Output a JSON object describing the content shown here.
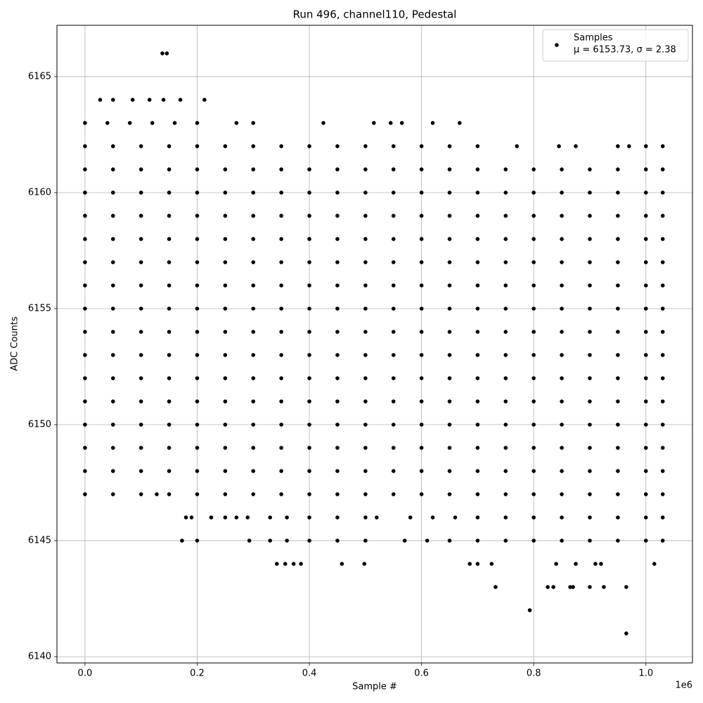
{
  "chart_data": {
    "type": "scatter",
    "title": "Run 496, channel110, Pedestal",
    "x_label": "Sample #",
    "y_label": "ADC Counts",
    "x_offset_label": "1e6",
    "xlim": [
      -0.05,
      1.083
    ],
    "ylim": [
      6139.73,
      6167.21
    ],
    "xticks": [
      {
        "value": 0,
        "label": "0.0"
      },
      {
        "value": 0.2,
        "label": "0.2"
      },
      {
        "value": 0.4,
        "label": "0.4"
      },
      {
        "value": 0.6,
        "label": "0.6"
      },
      {
        "value": 0.8,
        "label": "0.8"
      },
      {
        "value": 1.0,
        "label": "1.0"
      }
    ],
    "yticks": [
      6140,
      6145,
      6150,
      6155,
      6160,
      6165
    ],
    "grid": true,
    "legend": "upper right",
    "series": [
      {
        "name": "Samples",
        "legend_note": "μ = 6153.73, σ = 2.38",
        "color": "#000000",
        "x": [
          0,
          0.05,
          0.1,
          0.15,
          0.2,
          0.25,
          0.3,
          0.35,
          0.4,
          0.45,
          0.5,
          0.55,
          0.6,
          0.65,
          0.7,
          0.75,
          0.8,
          0.85,
          0.9,
          0.95,
          1.0,
          1.03,
          0,
          0.05,
          0.1,
          0.15,
          0.2,
          0.25,
          0.3,
          0.35,
          0.4,
          0.45,
          0.5,
          0.55,
          0.6,
          0.65,
          0.7,
          0.75,
          0.8,
          0.85,
          0.9,
          0.95,
          1.0,
          1.03,
          0,
          0.05,
          0.1,
          0.15,
          0.2,
          0.25,
          0.3,
          0.35,
          0.4,
          0.45,
          0.5,
          0.55,
          0.6,
          0.65,
          0.7,
          0.75,
          0.8,
          0.85,
          0.9,
          0.95,
          1.0,
          1.03,
          0,
          0.05,
          0.1,
          0.15,
          0.2,
          0.25,
          0.3,
          0.35,
          0.4,
          0.45,
          0.5,
          0.55,
          0.6,
          0.65,
          0.7,
          0.75,
          0.8,
          0.85,
          0.9,
          0.95,
          1.0,
          1.03,
          0,
          0.05,
          0.1,
          0.15,
          0.2,
          0.25,
          0.3,
          0.35,
          0.4,
          0.45,
          0.5,
          0.55,
          0.6,
          0.65,
          0.7,
          0.75,
          0.8,
          0.85,
          0.9,
          0.95,
          1.0,
          1.03,
          0,
          0.05,
          0.1,
          0.15,
          0.2,
          0.25,
          0.3,
          0.35,
          0.4,
          0.45,
          0.5,
          0.55,
          0.6,
          0.65,
          0.7,
          0.75,
          0.8,
          0.85,
          0.9,
          0.95,
          1.0,
          1.03,
          0,
          0.05,
          0.1,
          0.15,
          0.2,
          0.25,
          0.3,
          0.35,
          0.4,
          0.45,
          0.5,
          0.55,
          0.6,
          0.65,
          0.7,
          0.75,
          0.8,
          0.85,
          0.9,
          0.95,
          1.0,
          1.03,
          0,
          0.05,
          0.1,
          0.15,
          0.2,
          0.25,
          0.3,
          0.35,
          0.4,
          0.45,
          0.5,
          0.55,
          0.6,
          0.65,
          0.7,
          0.75,
          0.8,
          0.85,
          0.9,
          0.95,
          1.0,
          1.03,
          0,
          0.05,
          0.1,
          0.15,
          0.2,
          0.25,
          0.3,
          0.35,
          0.4,
          0.45,
          0.5,
          0.55,
          0.6,
          0.65,
          0.7,
          0.75,
          0.8,
          0.85,
          0.9,
          0.95,
          1.0,
          1.03,
          0,
          0.05,
          0.1,
          0.15,
          0.2,
          0.25,
          0.3,
          0.35,
          0.4,
          0.45,
          0.5,
          0.55,
          0.6,
          0.65,
          0.7,
          0.75,
          0.8,
          0.85,
          0.9,
          0.95,
          1.0,
          1.03,
          0,
          0.05,
          0.1,
          0.15,
          0.2,
          0.25,
          0.3,
          0.35,
          0.4,
          0.45,
          0.5,
          0.55,
          0.6,
          0.65,
          0.7,
          0.75,
          0.8,
          0.85,
          0.9,
          0.95,
          1.0,
          1.03,
          0,
          0.05,
          0.1,
          0.15,
          0.2,
          0.25,
          0.3,
          0.35,
          0.4,
          0.45,
          0.5,
          0.55,
          0.6,
          0.65,
          0.7,
          0.75,
          0.8,
          0.85,
          0.9,
          0.95,
          1.0,
          1.03,
          0,
          0.05,
          0.1,
          0.15,
          0.2,
          0.25,
          0.3,
          0.35,
          0.4,
          0.45,
          0.5,
          0.55,
          0.6,
          0.65,
          0.7,
          0.75,
          0.8,
          0.85,
          0.9,
          0.95,
          1.0,
          1.03,
          0,
          0.05,
          0.1,
          0.15,
          0.2,
          0.25,
          0.3,
          0.35,
          0.4,
          0.45,
          0.5,
          0.55,
          0.6,
          0.65,
          0.7,
          0.75,
          0.8,
          0.85,
          0.9,
          0.95,
          1.0,
          1.03,
          0,
          0.05,
          0.1,
          0.128,
          0.15,
          0.2,
          0.25,
          0.3,
          0.35,
          0.4,
          0.45,
          0.5,
          0.55,
          0.6,
          0.65,
          0.7,
          0.75,
          0.8,
          0.85,
          0.9,
          0.95,
          1.0,
          1.03,
          0,
          0.05,
          0.1,
          0.15,
          0.2,
          0.25,
          0.3,
          0.35,
          0.4,
          0.45,
          0.5,
          0.55,
          0.6,
          0.65,
          0.7,
          0.77,
          0.845,
          0.875,
          0.95,
          0.97,
          1.0,
          1.03,
          0.138,
          0.146,
          0.027,
          0.05,
          0.085,
          0.115,
          0.14,
          0.17,
          0.213,
          0,
          0.04,
          0.08,
          0.12,
          0.16,
          0.2,
          0.27,
          0.3,
          0.425,
          0.515,
          0.545,
          0.565,
          0.62,
          0.668,
          0.18,
          0.19,
          0.225,
          0.25,
          0.27,
          0.29,
          0.33,
          0.36,
          0.4,
          0.45,
          0.5,
          0.52,
          0.58,
          0.62,
          0.66,
          0.7,
          0.75,
          0.8,
          0.85,
          0.9,
          0.95,
          1.0,
          1.03,
          0.173,
          0.2,
          0.293,
          0.33,
          0.36,
          0.4,
          0.45,
          0.5,
          0.57,
          0.61,
          0.65,
          0.7,
          0.75,
          0.8,
          0.85,
          0.9,
          0.95,
          1.0,
          1.03,
          0.342,
          0.357,
          0.372,
          0.385,
          0.458,
          0.498,
          0.686,
          0.7,
          0.725,
          0.84,
          0.875,
          0.91,
          0.92,
          1.015,
          0.732,
          0.825,
          0.835,
          0.865,
          0.87,
          0.9,
          0.925,
          0.965,
          0.793,
          0.965
        ],
        "values": [
          6148,
          6148,
          6148,
          6148,
          6148,
          6148,
          6148,
          6148,
          6148,
          6148,
          6148,
          6148,
          6148,
          6148,
          6148,
          6148,
          6148,
          6148,
          6148,
          6148,
          6148,
          6148,
          6149,
          6149,
          6149,
          6149,
          6149,
          6149,
          6149,
          6149,
          6149,
          6149,
          6149,
          6149,
          6149,
          6149,
          6149,
          6149,
          6149,
          6149,
          6149,
          6149,
          6149,
          6149,
          6150,
          6150,
          6150,
          6150,
          6150,
          6150,
          6150,
          6150,
          6150,
          6150,
          6150,
          6150,
          6150,
          6150,
          6150,
          6150,
          6150,
          6150,
          6150,
          6150,
          6150,
          6150,
          6151,
          6151,
          6151,
          6151,
          6151,
          6151,
          6151,
          6151,
          6151,
          6151,
          6151,
          6151,
          6151,
          6151,
          6151,
          6151,
          6151,
          6151,
          6151,
          6151,
          6151,
          6151,
          6152,
          6152,
          6152,
          6152,
          6152,
          6152,
          6152,
          6152,
          6152,
          6152,
          6152,
          6152,
          6152,
          6152,
          6152,
          6152,
          6152,
          6152,
          6152,
          6152,
          6152,
          6152,
          6153,
          6153,
          6153,
          6153,
          6153,
          6153,
          6153,
          6153,
          6153,
          6153,
          6153,
          6153,
          6153,
          6153,
          6153,
          6153,
          6153,
          6153,
          6153,
          6153,
          6153,
          6153,
          6154,
          6154,
          6154,
          6154,
          6154,
          6154,
          6154,
          6154,
          6154,
          6154,
          6154,
          6154,
          6154,
          6154,
          6154,
          6154,
          6154,
          6154,
          6154,
          6154,
          6154,
          6154,
          6155,
          6155,
          6155,
          6155,
          6155,
          6155,
          6155,
          6155,
          6155,
          6155,
          6155,
          6155,
          6155,
          6155,
          6155,
          6155,
          6155,
          6155,
          6155,
          6155,
          6155,
          6155,
          6156,
          6156,
          6156,
          6156,
          6156,
          6156,
          6156,
          6156,
          6156,
          6156,
          6156,
          6156,
          6156,
          6156,
          6156,
          6156,
          6156,
          6156,
          6156,
          6156,
          6156,
          6156,
          6157,
          6157,
          6157,
          6157,
          6157,
          6157,
          6157,
          6157,
          6157,
          6157,
          6157,
          6157,
          6157,
          6157,
          6157,
          6157,
          6157,
          6157,
          6157,
          6157,
          6157,
          6157,
          6158,
          6158,
          6158,
          6158,
          6158,
          6158,
          6158,
          6158,
          6158,
          6158,
          6158,
          6158,
          6158,
          6158,
          6158,
          6158,
          6158,
          6158,
          6158,
          6158,
          6158,
          6158,
          6159,
          6159,
          6159,
          6159,
          6159,
          6159,
          6159,
          6159,
          6159,
          6159,
          6159,
          6159,
          6159,
          6159,
          6159,
          6159,
          6159,
          6159,
          6159,
          6159,
          6159,
          6159,
          6160,
          6160,
          6160,
          6160,
          6160,
          6160,
          6160,
          6160,
          6160,
          6160,
          6160,
          6160,
          6160,
          6160,
          6160,
          6160,
          6160,
          6160,
          6160,
          6160,
          6160,
          6160,
          6161,
          6161,
          6161,
          6161,
          6161,
          6161,
          6161,
          6161,
          6161,
          6161,
          6161,
          6161,
          6161,
          6161,
          6161,
          6161,
          6161,
          6161,
          6161,
          6161,
          6161,
          6161,
          6147,
          6147,
          6147,
          6147,
          6147,
          6147,
          6147,
          6147,
          6147,
          6147,
          6147,
          6147,
          6147,
          6147,
          6147,
          6147,
          6147,
          6147,
          6147,
          6147,
          6147,
          6147,
          6147,
          6162,
          6162,
          6162,
          6162,
          6162,
          6162,
          6162,
          6162,
          6162,
          6162,
          6162,
          6162,
          6162,
          6162,
          6162,
          6162,
          6162,
          6162,
          6162,
          6162,
          6162,
          6162,
          6166,
          6166,
          6164,
          6164,
          6164,
          6164,
          6164,
          6164,
          6164,
          6163,
          6163,
          6163,
          6163,
          6163,
          6163,
          6163,
          6163,
          6163,
          6163,
          6163,
          6163,
          6163,
          6163,
          6146,
          6146,
          6146,
          6146,
          6146,
          6146,
          6146,
          6146,
          6146,
          6146,
          6146,
          6146,
          6146,
          6146,
          6146,
          6146,
          6146,
          6146,
          6146,
          6146,
          6146,
          6146,
          6146,
          6145,
          6145,
          6145,
          6145,
          6145,
          6145,
          6145,
          6145,
          6145,
          6145,
          6145,
          6145,
          6145,
          6145,
          6145,
          6145,
          6145,
          6145,
          6145,
          6144,
          6144,
          6144,
          6144,
          6144,
          6144,
          6144,
          6144,
          6144,
          6144,
          6144,
          6144,
          6144,
          6144,
          6143,
          6143,
          6143,
          6143,
          6143,
          6143,
          6143,
          6143,
          6142,
          6141
        ]
      }
    ]
  }
}
